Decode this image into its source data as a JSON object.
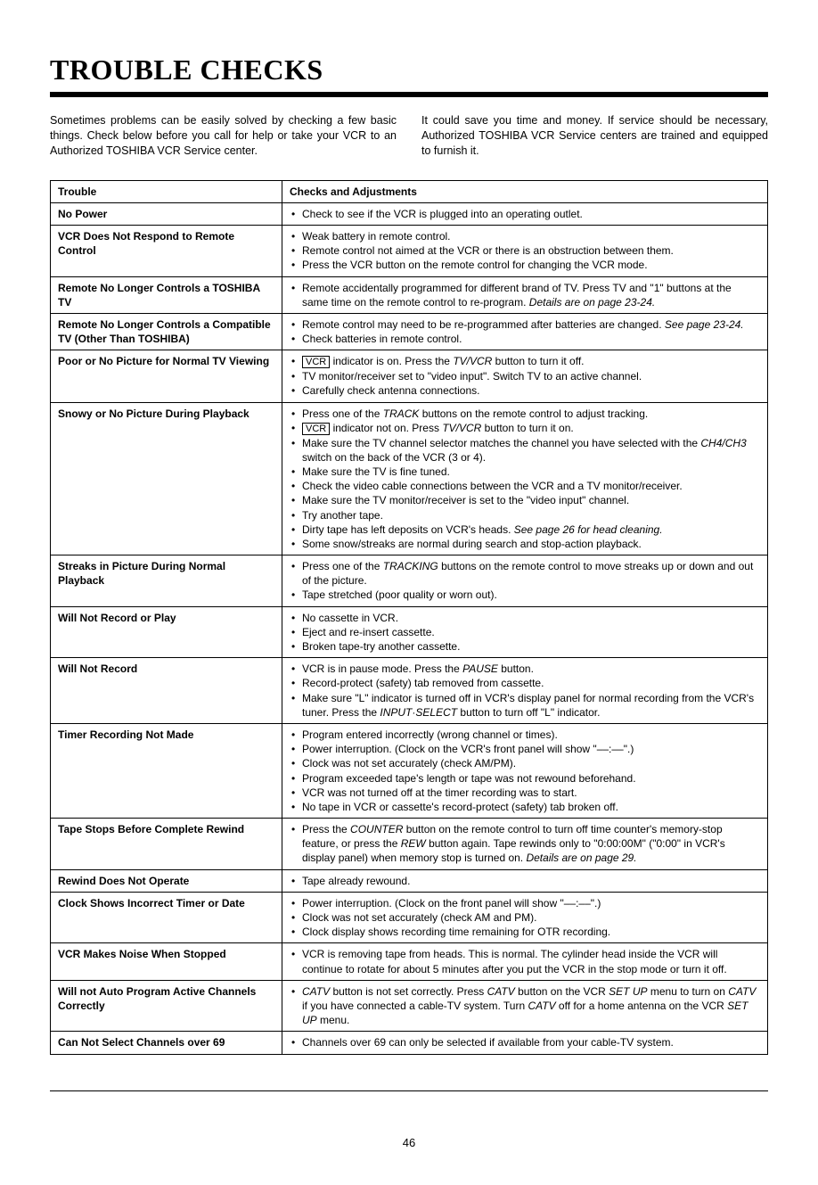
{
  "title": "TROUBLE CHECKS",
  "intro": {
    "left": "Sometimes problems can be easily solved by checking a few basic things. Check below before you call for help or take your VCR to an Authorized TOSHIBA VCR Service center.",
    "right": "It could save you time and money. If service should be necessary, Authorized TOSHIBA VCR Service centers are trained and equipped to furnish it."
  },
  "headers": {
    "trouble": "Trouble",
    "checks": "Checks and Adjustments"
  },
  "rows": [
    {
      "trouble": "No Power",
      "checks": [
        "Check to see if the VCR is plugged into an operating outlet."
      ]
    },
    {
      "trouble": "VCR Does Not Respond to Remote Control",
      "checks": [
        "Weak battery in remote control.",
        "Remote control not aimed at the VCR or there is an obstruction between them.",
        "Press the VCR button on the remote control for changing the VCR mode."
      ]
    },
    {
      "trouble": "Remote No Longer Controls a TOSHIBA TV",
      "checks": [
        "Remote accidentally programmed for different brand of TV. Press TV and \"1\" buttons at the same time on the remote control to re-program. <i>Details are on page 23-24.</i>"
      ]
    },
    {
      "trouble": "Remote No Longer Controls a Compatible TV (Other Than TOSHIBA)",
      "checks": [
        "Remote control may need to be re-programmed after batteries are changed. <i>See page 23-24.</i>",
        "Check batteries in remote control."
      ]
    },
    {
      "trouble": "Poor or No Picture for Normal TV Viewing",
      "checks": [
        "<span class=\"boxed\">VCR</span> indicator is on. Press the <i>TV/VCR</i> button to turn it off.",
        "TV monitor/receiver set to \"video input\". Switch TV to an active channel.",
        "Carefully check antenna connections."
      ]
    },
    {
      "trouble": "Snowy or No Picture During Playback",
      "checks": [
        "Press one of the <i>TRACK</i> buttons on the remote control to adjust tracking.",
        "<span class=\"boxed\">VCR</span> indicator not on. Press <i>TV/VCR</i> button to turn it on.",
        "Make sure the TV channel selector matches the channel you have selected with the <i>CH4/CH3</i> switch on the back of the VCR (3 or 4).",
        "Make sure the TV is fine tuned.",
        "Check the video cable connections between the VCR and a TV monitor/receiver.",
        "Make sure the TV monitor/receiver is set to the \"video input\" channel.",
        "Try another tape.",
        "Dirty tape has left deposits on VCR's heads. <i>See page 26 for head cleaning.</i>",
        "Some snow/streaks are normal during search and stop-action playback."
      ]
    },
    {
      "trouble": "Streaks in Picture During Normal Playback",
      "checks": [
        "Press one of the <i>TRACKING</i> buttons on the remote control to move streaks up or down and out of the picture.",
        "Tape stretched (poor quality or worn out)."
      ]
    },
    {
      "trouble": "Will Not Record or Play",
      "checks": [
        "No cassette in VCR.",
        "Eject and re-insert cassette.",
        "Broken tape-try another cassette."
      ]
    },
    {
      "trouble": "Will Not Record",
      "checks": [
        "VCR is in pause mode. Press the <i>PAUSE</i> button.",
        "Record-protect (safety) tab removed from cassette.",
        "Make sure \"L\" indicator is turned off in VCR's display panel for normal recording from the VCR's tuner. Press the <i>INPUT·SELECT</i> button to turn off \"L\" indicator."
      ]
    },
    {
      "trouble": "Timer Recording Not Made",
      "checks": [
        "Program entered incorrectly (wrong channel or times).",
        "Power interruption. (Clock on the VCR's front panel will show \"––:––\".)",
        "Clock was not set accurately (check AM/PM).",
        "Program exceeded tape's length or tape was not rewound beforehand.",
        "VCR was not turned off at the timer recording was to start.",
        "No tape in VCR or cassette's record-protect (safety) tab broken off."
      ]
    },
    {
      "trouble": "Tape Stops Before Complete Rewind",
      "checks": [
        "Press the <i>COUNTER</i> button on the remote control to turn off time counter's memory-stop feature, or press the <i>REW</i> button again. Tape rewinds only to \"0:00:00M\" (\"0:00\" in VCR's display panel) when memory stop is turned on. <i>Details are on page 29.</i>"
      ]
    },
    {
      "trouble": "Rewind Does Not Operate",
      "checks": [
        "Tape already rewound."
      ]
    },
    {
      "trouble": "Clock Shows Incorrect Timer or Date",
      "checks": [
        "Power interruption. (Clock on the front panel will show \"––:––\".)",
        "Clock was not set accurately (check AM and PM).",
        "Clock display shows recording time remaining for OTR recording."
      ]
    },
    {
      "trouble": "VCR Makes Noise When Stopped",
      "checks": [
        "VCR is removing tape from heads. This is normal. The cylinder head inside the VCR will continue to rotate for about 5 minutes after you put the VCR in the stop mode or turn it off."
      ]
    },
    {
      "trouble": "Will not Auto Program Active Channels Correctly",
      "checks": [
        "<i>CATV</i> button is not set correctly. Press <i>CATV</i> button on the VCR <i>SET UP</i> menu to turn on <i>CATV</i> if you have connected a cable-TV system. Turn <i>CATV</i> off for a home antenna on the VCR <i>SET UP</i> menu."
      ]
    },
    {
      "trouble": "Can Not Select Channels over 69",
      "checks": [
        "Channels over 69 can only be selected if available from your cable-TV system."
      ]
    }
  ],
  "page_number": "46",
  "colors": {
    "text": "#000000",
    "background": "#ffffff",
    "watermark": "rgba(80,150,230,0.12)"
  }
}
